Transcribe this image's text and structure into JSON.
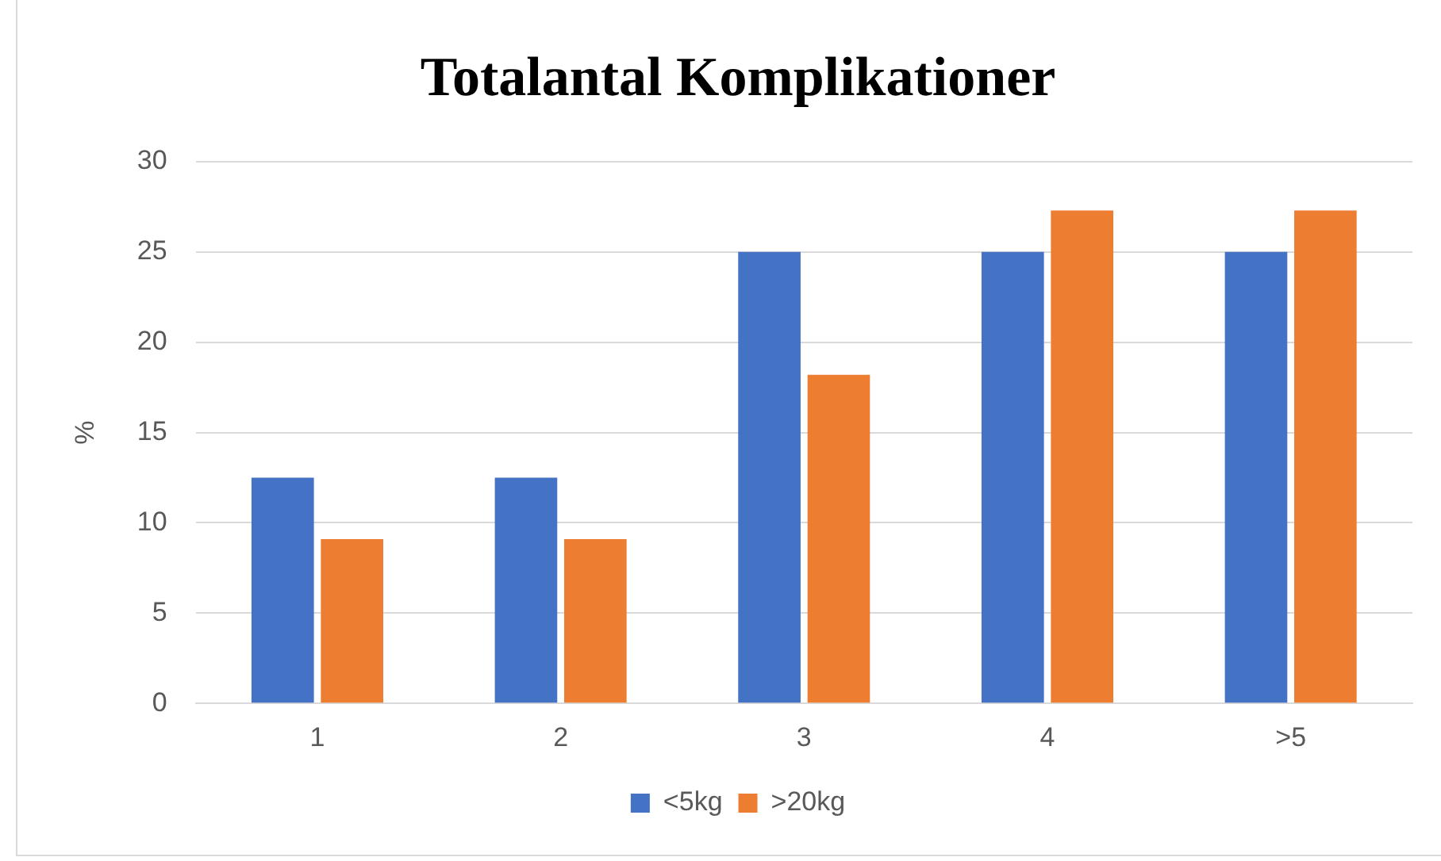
{
  "chart_data": {
    "type": "bar",
    "title": "Totalantal Komplikationer",
    "ylabel": "%",
    "categories": [
      "1",
      "2",
      "3",
      "4",
      ">5"
    ],
    "series": [
      {
        "name": "<5kg",
        "color": "#4472c4",
        "values": [
          12.5,
          12.5,
          25,
          25,
          25
        ]
      },
      {
        "name": ">20kg",
        "color": "#ed7d31",
        "values": [
          9.1,
          9.1,
          18.2,
          27.3,
          27.3
        ]
      }
    ],
    "ylim": [
      0,
      30
    ],
    "yticks": [
      0,
      5,
      10,
      15,
      20,
      25,
      30
    ],
    "grid": "y",
    "legend": "bottom"
  }
}
